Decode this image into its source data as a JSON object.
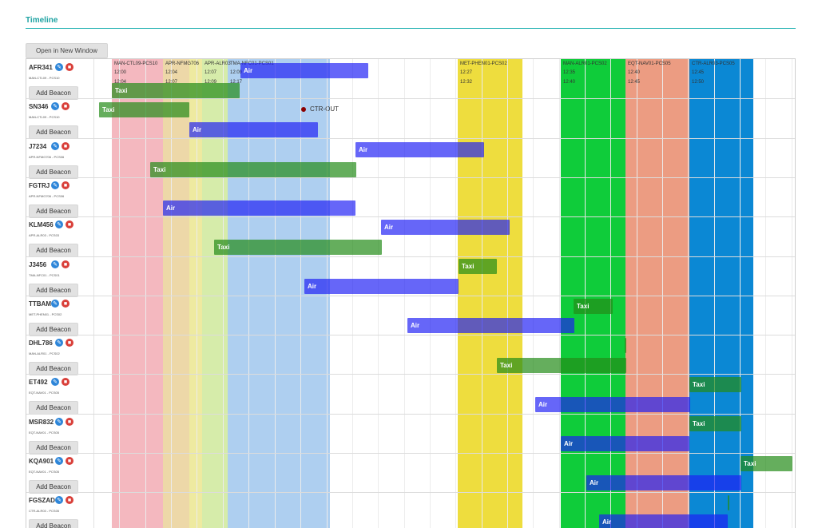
{
  "header": {
    "title": "Timeline",
    "open_window_label": "Open in New Window"
  },
  "sectors": [
    {
      "label": "MAN-CTL09-PCS10",
      "times": [
        "12:00",
        "12:04"
      ],
      "color": "#f4b8bf"
    },
    {
      "label": "APR-NFMG706",
      "times": [
        "12:04",
        "12:07"
      ],
      "color": "#edd8a8"
    },
    {
      "label": "APR-ALR03",
      "times": [
        "12:07",
        "12:09"
      ],
      "color": "#d6ecaa"
    },
    {
      "label": "TMA-NFC01-PCS01",
      "times": [
        "12:09",
        "12:17"
      ],
      "color": "#aecff0"
    },
    {
      "label": "MET-PHEN01-PCS02",
      "times": [
        "12:27",
        "12:32"
      ],
      "color": "#eedd3e"
    },
    {
      "label": "MAN-ALR01-PCS02",
      "times": [
        "12:35",
        "12:40"
      ],
      "color": "#0fcc3a"
    },
    {
      "label": "EQT-NAV01-PCS05",
      "times": [
        "12:40",
        "12:45"
      ],
      "color": "#ec9c82"
    },
    {
      "label": "CTR-ALR03-PCS05",
      "times": [
        "12:45",
        "12:50"
      ],
      "color": "#0b88d4"
    }
  ],
  "flights": [
    {
      "id": "AFR341",
      "sub": "MAN-CTL09 - PCS10",
      "beacon": "Add Beacon"
    },
    {
      "id": "SN346",
      "sub": "MAN-CTL09 - PCS10",
      "beacon": "Add Beacon"
    },
    {
      "id": "J7234",
      "sub": "APR-NFMG706 - PCS06",
      "beacon": "Add Beacon"
    },
    {
      "id": "FGTRJ",
      "sub": "APR-NFMG706 - PCS06",
      "beacon": "Add Beacon"
    },
    {
      "id": "KLM456",
      "sub": "APR-ALR03 - PCS03",
      "beacon": "Add Beacon"
    },
    {
      "id": "J3456",
      "sub": "TMA-NFC01 - PCS01",
      "beacon": "Add Beacon"
    },
    {
      "id": "TTBAM",
      "sub": "MET-PHEN01 - PCS02",
      "beacon": "Add Beacon"
    },
    {
      "id": "DHL786",
      "sub": "MAN-ALR01 - PCS02",
      "beacon": "Add Beacon"
    },
    {
      "id": "ET492",
      "sub": "EQT-NAV01 - PCS05",
      "beacon": "Add Beacon"
    },
    {
      "id": "MSR832",
      "sub": "EQT-NAV01 - PCS05",
      "beacon": "Add Beacon"
    },
    {
      "id": "KQA901",
      "sub": "EQT-NAV01 - PCS05",
      "beacon": "Add Beacon"
    },
    {
      "id": "FGSZAD",
      "sub": "CTR-ALR03 - PCS05",
      "beacon": "Add Beacon"
    }
  ],
  "bar_labels": {
    "air": "Air",
    "taxi": "Taxi"
  },
  "marker": {
    "label": "CTR-OUT",
    "color": "#8b0000"
  },
  "colors": {
    "accent": "#1fa3a3",
    "air": "#1e1ef5",
    "taxi": "#248c18",
    "edit_icon": "#2e86d9",
    "delete_icon": "#d9403a"
  },
  "icons": {
    "edit": "edit-icon",
    "delete": "trash-icon"
  }
}
